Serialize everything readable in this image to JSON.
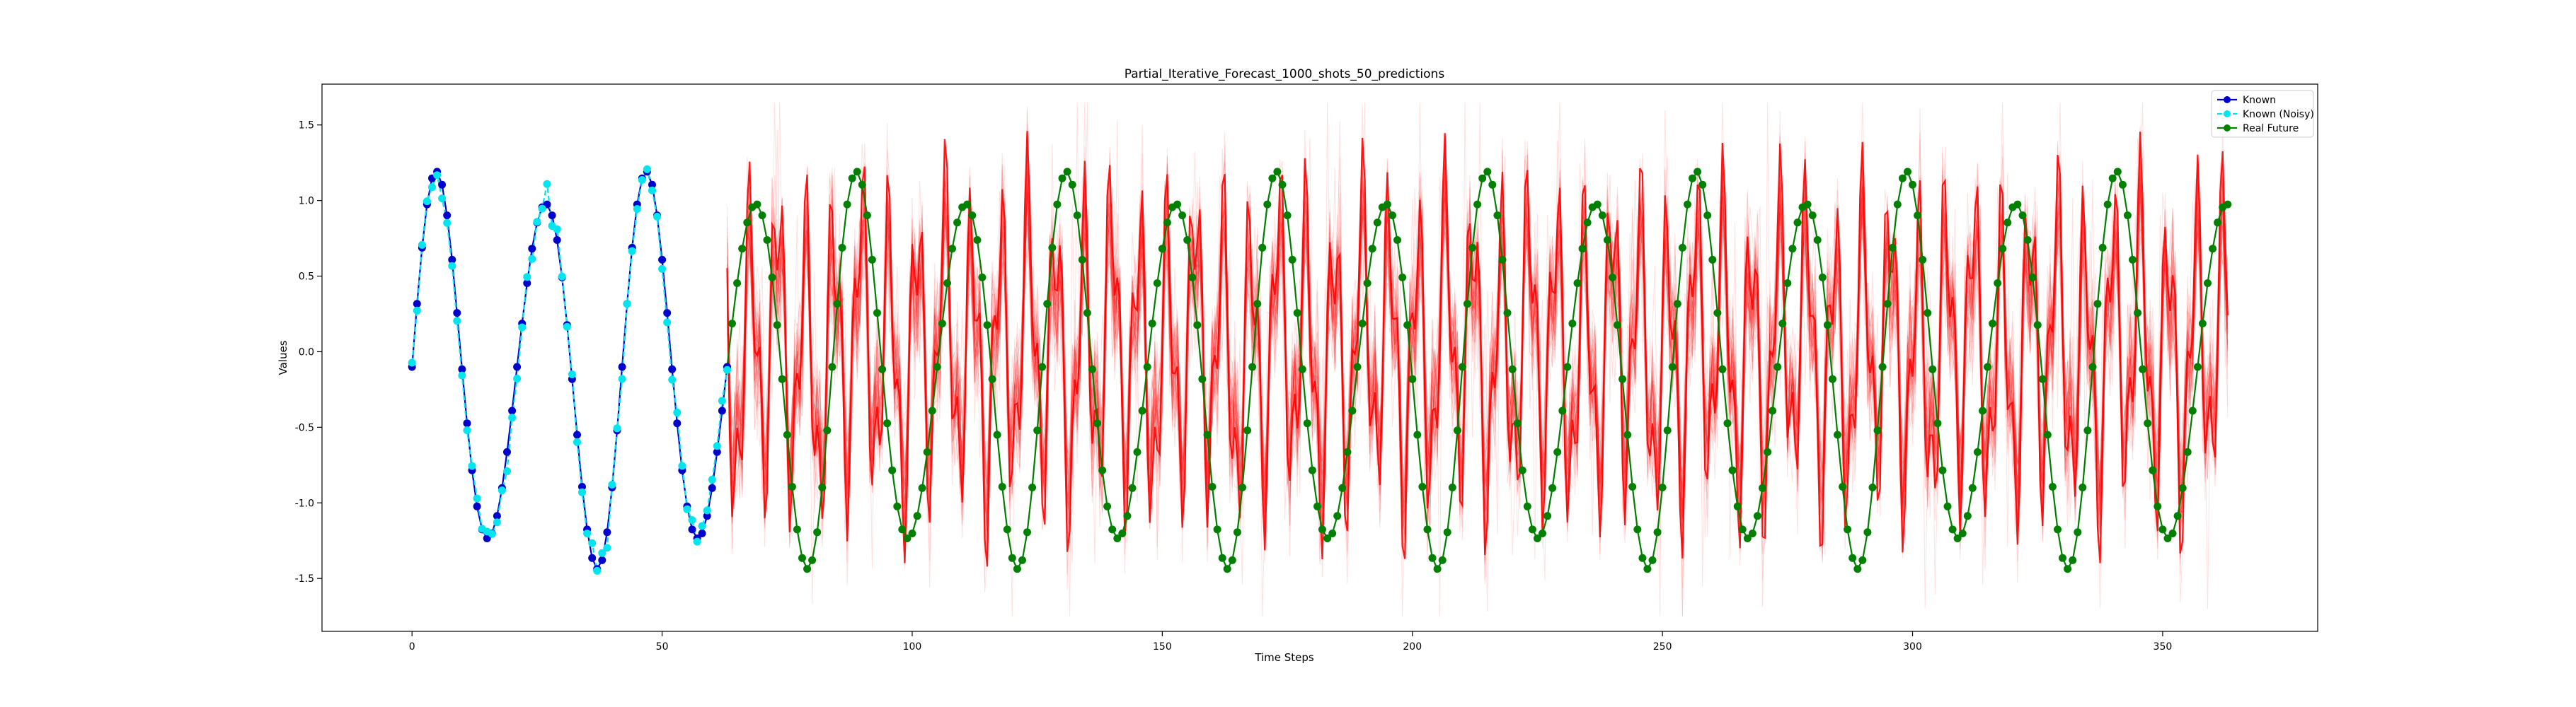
{
  "chart_data": {
    "type": "line",
    "title": "Partial_Iterative_Forecast_1000_shots_50_predictions",
    "xlabel": "Time Steps",
    "ylabel": "Values",
    "xlim": [
      -18,
      381
    ],
    "ylim": [
      -1.85,
      1.77
    ],
    "xticks": [
      0,
      50,
      100,
      150,
      200,
      250,
      300,
      350
    ],
    "yticks": [
      -1.5,
      -1.0,
      -0.5,
      0.0,
      0.5,
      1.0,
      1.5
    ],
    "grid": false,
    "legend_position": "top-right",
    "known_end_step": 63,
    "forecast_end_step": 363,
    "series": [
      {
        "name": "Known",
        "color": "#0000cd",
        "marker": "circle",
        "style": "solid",
        "generator": {
          "amp": 1.2,
          "offset": -0.125,
          "period": 21.0,
          "phase": 0.02,
          "harmonic_amp": 0.15,
          "harmonic_ratio": 1.5
        }
      },
      {
        "name": "Known (Noisy)",
        "color": "#00e5ee",
        "marker": "circle",
        "style": "dashed",
        "noise": 0.05
      },
      {
        "name": "Real Future",
        "color": "#008000",
        "marker": "circle",
        "style": "solid"
      }
    ],
    "prediction_band": {
      "color": "#ff0000",
      "count": 50,
      "spread": 0.45
    }
  }
}
